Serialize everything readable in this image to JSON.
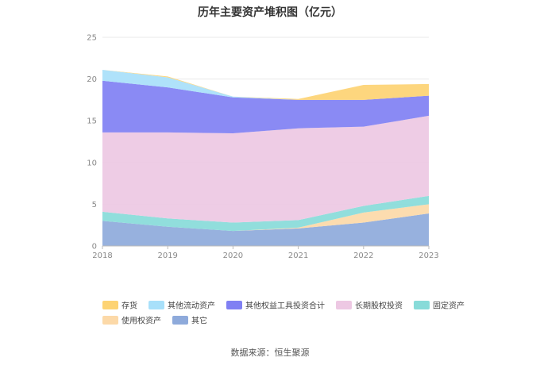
{
  "chart_data": {
    "type": "area",
    "stacked": true,
    "title": "历年主要资产堆积图（亿元）",
    "x": [
      "2018",
      "2019",
      "2020",
      "2021",
      "2022",
      "2023"
    ],
    "ylim": [
      0,
      25
    ],
    "yticks": [
      0,
      5,
      10,
      15,
      20,
      25
    ],
    "xlabel": "",
    "ylabel": "",
    "grid": true,
    "legend_position": "bottom",
    "series": [
      {
        "name": "其它",
        "color": "#8eaadb",
        "values": [
          3.0,
          2.3,
          1.8,
          2.1,
          2.8,
          3.9
        ]
      },
      {
        "name": "使用权资产",
        "color": "#fcd9a8",
        "values": [
          0.0,
          0.0,
          0.0,
          0.1,
          1.2,
          1.1
        ]
      },
      {
        "name": "固定资产",
        "color": "#88dbd9",
        "values": [
          1.1,
          1.0,
          1.0,
          0.9,
          0.8,
          1.0
        ]
      },
      {
        "name": "长期股权投资",
        "color": "#edc8e3",
        "values": [
          9.5,
          10.3,
          10.7,
          11.0,
          9.5,
          9.6
        ]
      },
      {
        "name": "其他权益工具投资合计",
        "color": "#8080f3",
        "values": [
          6.2,
          5.4,
          4.3,
          3.4,
          3.2,
          2.4
        ]
      },
      {
        "name": "其他流动资产",
        "color": "#a8e0fa",
        "values": [
          1.3,
          1.2,
          0.1,
          0.0,
          0.0,
          0.0
        ]
      },
      {
        "name": "存货",
        "color": "#fdd373",
        "values": [
          0.0,
          0.1,
          0.0,
          0.1,
          1.8,
          1.4
        ]
      }
    ],
    "legend_order": [
      "存货",
      "其他流动资产",
      "其他权益工具投资合计",
      "长期股权投资",
      "固定资产",
      "使用权资产",
      "其它"
    ]
  },
  "source": "数据来源：恒生聚源"
}
